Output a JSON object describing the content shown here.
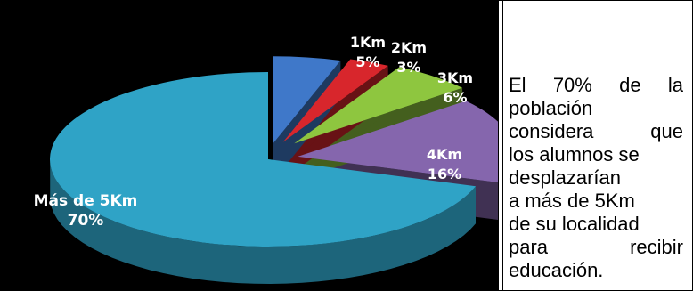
{
  "chart_data": {
    "type": "pie",
    "categories": [
      "1Km",
      "2Km",
      "3Km",
      "4Km",
      "Más de 5Km"
    ],
    "values": [
      5,
      3,
      6,
      16,
      70
    ],
    "value_labels": [
      "5%",
      "3%",
      "6%",
      "16%",
      "70%"
    ],
    "colors": [
      "#3f78c9",
      "#d8262c",
      "#8ec63f",
      "#8566ad",
      "#2fa3c6"
    ],
    "style": "3d-exploded"
  },
  "description": {
    "lines": [
      [
        "El",
        "70%",
        "de",
        "la"
      ],
      [
        "población"
      ],
      [
        "considera",
        "que"
      ],
      [
        "los alumnos se"
      ],
      [
        "desplazarían"
      ],
      [
        " a más de 5Km"
      ],
      [
        "de su localidad"
      ],
      [
        "para",
        "recibir"
      ],
      [
        "educación."
      ]
    ]
  }
}
